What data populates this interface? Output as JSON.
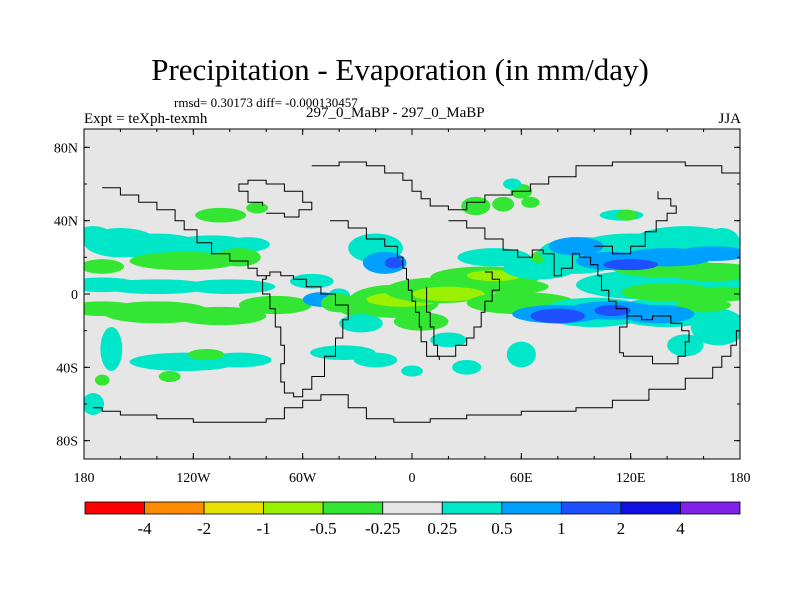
{
  "chart_data": {
    "type": "heatmap",
    "title": "Precipitation - Evaporation (in mm/day)",
    "stats_text": "rmsd= 0.30173 diff= -0.000130457",
    "expt_label": "Expt = teXph-texmh",
    "center_label": "297_0_MaBP - 297_0_MaBP",
    "season": "JJA",
    "xlim": [
      -180,
      180
    ],
    "ylim": [
      -90,
      90
    ],
    "x_ticks": [
      {
        "value": -180,
        "label": "180"
      },
      {
        "value": -120,
        "label": "120W"
      },
      {
        "value": -60,
        "label": "60W"
      },
      {
        "value": 0,
        "label": "0"
      },
      {
        "value": 60,
        "label": "60E"
      },
      {
        "value": 120,
        "label": "120E"
      },
      {
        "value": 180,
        "label": "180"
      }
    ],
    "y_ticks": [
      {
        "value": 80,
        "label": "80N"
      },
      {
        "value": 40,
        "label": "40N"
      },
      {
        "value": 0,
        "label": "0"
      },
      {
        "value": -40,
        "label": "40S"
      },
      {
        "value": -80,
        "label": "80S"
      }
    ],
    "background_color": "#e6e6e6",
    "colorbar": {
      "colors": [
        "#ff0000",
        "#ff8c00",
        "#e8e000",
        "#99f000",
        "#33e633",
        "#e6e6e6",
        "#00e6c8",
        "#00a0ff",
        "#1e50ff",
        "#1010e0",
        "#8020e8"
      ],
      "labels": [
        "-4",
        "-2",
        "-1",
        "-0.5",
        "-0.25",
        "0.25",
        "0.5",
        "1",
        "2",
        "4"
      ]
    },
    "regions": [
      {
        "cat": 6,
        "lon": -175,
        "lat": 32,
        "dlon": 10,
        "dlat": 5
      },
      {
        "cat": 6,
        "lon": -160,
        "lat": 28,
        "dlon": 20,
        "dlat": 8
      },
      {
        "cat": 6,
        "lon": -140,
        "lat": 26,
        "dlon": 25,
        "dlat": 7
      },
      {
        "cat": 6,
        "lon": -110,
        "lat": 25,
        "dlon": 25,
        "dlat": 7
      },
      {
        "cat": 6,
        "lon": -90,
        "lat": 27,
        "dlon": 12,
        "dlat": 4
      },
      {
        "cat": 4,
        "lon": -125,
        "lat": 18,
        "dlon": 30,
        "dlat": 5
      },
      {
        "cat": 4,
        "lon": -95,
        "lat": 20,
        "dlon": 12,
        "dlat": 5
      },
      {
        "cat": 4,
        "lon": -105,
        "lat": 43,
        "dlon": 14,
        "dlat": 4
      },
      {
        "cat": 4,
        "lon": -85,
        "lat": 47,
        "dlon": 6,
        "dlat": 3
      },
      {
        "cat": 4,
        "lon": -170,
        "lat": 15,
        "dlon": 12,
        "dlat": 4
      },
      {
        "cat": 6,
        "lon": -170,
        "lat": 5,
        "dlon": 20,
        "dlat": 4
      },
      {
        "cat": 6,
        "lon": -140,
        "lat": 4,
        "dlon": 30,
        "dlat": 4
      },
      {
        "cat": 6,
        "lon": -100,
        "lat": 4,
        "dlon": 25,
        "dlat": 4
      },
      {
        "cat": 4,
        "lon": -170,
        "lat": -8,
        "dlon": 20,
        "dlat": 4
      },
      {
        "cat": 4,
        "lon": -140,
        "lat": -10,
        "dlon": 30,
        "dlat": 6
      },
      {
        "cat": 4,
        "lon": -105,
        "lat": -12,
        "dlon": 25,
        "dlat": 5
      },
      {
        "cat": 4,
        "lon": -75,
        "lat": -6,
        "dlon": 20,
        "dlat": 5
      },
      {
        "cat": 6,
        "lon": -165,
        "lat": -30,
        "dlon": 6,
        "dlat": 12
      },
      {
        "cat": 6,
        "lon": -125,
        "lat": -37,
        "dlon": 30,
        "dlat": 5
      },
      {
        "cat": 6,
        "lon": -95,
        "lat": -36,
        "dlon": 18,
        "dlat": 4
      },
      {
        "cat": 4,
        "lon": -113,
        "lat": -33,
        "dlon": 10,
        "dlat": 3
      },
      {
        "cat": 4,
        "lon": -133,
        "lat": -45,
        "dlon": 6,
        "dlat": 3
      },
      {
        "cat": 4,
        "lon": -170,
        "lat": -47,
        "dlon": 4,
        "dlat": 3
      },
      {
        "cat": 6,
        "lon": -175,
        "lat": -60,
        "dlon": 6,
        "dlat": 6
      },
      {
        "cat": 6,
        "lon": -55,
        "lat": 7,
        "dlon": 12,
        "dlat": 4
      },
      {
        "cat": 7,
        "lon": -50,
        "lat": -3,
        "dlon": 10,
        "dlat": 4
      },
      {
        "cat": 6,
        "lon": -40,
        "lat": -1,
        "dlon": 6,
        "dlat": 4
      },
      {
        "cat": 4,
        "lon": -40,
        "lat": -5,
        "dlon": 10,
        "dlat": 5
      },
      {
        "cat": 4,
        "lon": -25,
        "lat": -8,
        "dlon": 15,
        "dlat": 5
      },
      {
        "cat": 6,
        "lon": -38,
        "lat": -32,
        "dlon": 18,
        "dlat": 4
      },
      {
        "cat": 6,
        "lon": -20,
        "lat": -36,
        "dlon": 12,
        "dlat": 4
      },
      {
        "cat": 4,
        "lon": -10,
        "lat": -4,
        "dlon": 25,
        "dlat": 9
      },
      {
        "cat": 3,
        "lon": -5,
        "lat": -3,
        "dlon": 20,
        "dlat": 4
      },
      {
        "cat": 4,
        "lon": 15,
        "lat": 2,
        "dlon": 30,
        "dlat": 7
      },
      {
        "cat": 3,
        "lon": 20,
        "lat": 0,
        "dlon": 20,
        "dlat": 4
      },
      {
        "cat": 4,
        "lon": 5,
        "lat": -15,
        "dlon": 15,
        "dlat": 5
      },
      {
        "cat": 6,
        "lon": 20,
        "lat": -25,
        "dlon": 10,
        "dlat": 4
      },
      {
        "cat": 4,
        "lon": 40,
        "lat": 9,
        "dlon": 30,
        "dlat": 6
      },
      {
        "cat": 4,
        "lon": 55,
        "lat": 4,
        "dlon": 20,
        "dlat": 4
      },
      {
        "cat": 3,
        "lon": 45,
        "lat": 10,
        "dlon": 15,
        "dlat": 3
      },
      {
        "cat": 6,
        "lon": 45,
        "lat": 20,
        "dlon": 20,
        "dlat": 5
      },
      {
        "cat": 4,
        "lon": 60,
        "lat": -5,
        "dlon": 30,
        "dlat": 6
      },
      {
        "cat": 6,
        "lon": 70,
        "lat": 14,
        "dlon": 20,
        "dlat": 6
      },
      {
        "cat": 4,
        "lon": 80,
        "lat": 20,
        "dlon": 15,
        "dlat": 5
      },
      {
        "cat": 6,
        "lon": 90,
        "lat": 16,
        "dlon": 20,
        "dlat": 5
      },
      {
        "cat": 6,
        "lon": 60,
        "lat": -33,
        "dlon": 8,
        "dlat": 7
      },
      {
        "cat": 4,
        "lon": 35,
        "lat": 48,
        "dlon": 8,
        "dlat": 5
      },
      {
        "cat": 4,
        "lon": 50,
        "lat": 49,
        "dlon": 6,
        "dlat": 4
      },
      {
        "cat": 4,
        "lon": 60,
        "lat": 56,
        "dlon": 6,
        "dlat": 4
      },
      {
        "cat": 4,
        "lon": 65,
        "lat": 50,
        "dlon": 5,
        "dlat": 3
      },
      {
        "cat": 6,
        "lon": 55,
        "lat": 60,
        "dlon": 5,
        "dlat": 3
      },
      {
        "cat": 6,
        "lon": 115,
        "lat": 43,
        "dlon": 12,
        "dlat": 3
      },
      {
        "cat": 4,
        "lon": 118,
        "lat": 43,
        "dlon": 6,
        "dlat": 3
      },
      {
        "cat": 6,
        "lon": 95,
        "lat": 23,
        "dlon": 25,
        "dlat": 8
      },
      {
        "cat": 6,
        "lon": 120,
        "lat": 25,
        "dlon": 30,
        "dlat": 8
      },
      {
        "cat": 6,
        "lon": 150,
        "lat": 28,
        "dlon": 30,
        "dlat": 9
      },
      {
        "cat": 6,
        "lon": 170,
        "lat": 28,
        "dlon": 10,
        "dlat": 8
      },
      {
        "cat": 6,
        "lon": 130,
        "lat": 5,
        "dlon": 40,
        "dlat": 8
      },
      {
        "cat": 6,
        "lon": 165,
        "lat": 6,
        "dlon": 25,
        "dlat": 6
      },
      {
        "cat": 6,
        "lon": 100,
        "lat": -10,
        "dlon": 30,
        "dlat": 8
      },
      {
        "cat": 6,
        "lon": 140,
        "lat": -10,
        "dlon": 30,
        "dlat": 8
      },
      {
        "cat": 6,
        "lon": 168,
        "lat": -18,
        "dlon": 15,
        "dlat": 10
      },
      {
        "cat": 6,
        "lon": 150,
        "lat": -28,
        "dlon": 10,
        "dlat": 6
      },
      {
        "cat": 4,
        "lon": 140,
        "lat": 14,
        "dlon": 30,
        "dlat": 5
      },
      {
        "cat": 4,
        "lon": 165,
        "lat": 12,
        "dlon": 25,
        "dlat": 5
      },
      {
        "cat": 4,
        "lon": 140,
        "lat": 1,
        "dlon": 25,
        "dlat": 5
      },
      {
        "cat": 4,
        "lon": 170,
        "lat": 0,
        "dlon": 20,
        "dlat": 4
      },
      {
        "cat": 4,
        "lon": 160,
        "lat": -6,
        "dlon": 15,
        "dlat": 4
      },
      {
        "cat": 7,
        "lon": 90,
        "lat": 26,
        "dlon": 15,
        "dlat": 5
      },
      {
        "cat": 7,
        "lon": 110,
        "lat": 18,
        "dlon": 20,
        "dlat": 5
      },
      {
        "cat": 7,
        "lon": 140,
        "lat": 20,
        "dlon": 25,
        "dlat": 5
      },
      {
        "cat": 7,
        "lon": 165,
        "lat": 22,
        "dlon": 20,
        "dlat": 4
      },
      {
        "cat": 7,
        "lon": 80,
        "lat": -11,
        "dlon": 25,
        "dlat": 5
      },
      {
        "cat": 7,
        "lon": 110,
        "lat": -9,
        "dlon": 25,
        "dlat": 5
      },
      {
        "cat": 7,
        "lon": 135,
        "lat": -11,
        "dlon": 20,
        "dlat": 5
      },
      {
        "cat": 8,
        "lon": 120,
        "lat": 16,
        "dlon": 15,
        "dlat": 3
      },
      {
        "cat": 8,
        "lon": 80,
        "lat": -12,
        "dlon": 15,
        "dlat": 4
      },
      {
        "cat": 8,
        "lon": 110,
        "lat": -9,
        "dlon": 10,
        "dlat": 3
      },
      {
        "cat": 6,
        "lon": -20,
        "lat": 25,
        "dlon": 15,
        "dlat": 8
      },
      {
        "cat": 7,
        "lon": -15,
        "lat": 17,
        "dlon": 12,
        "dlat": 6
      },
      {
        "cat": 8,
        "lon": -10,
        "lat": 17,
        "dlon": 5,
        "dlat": 3
      },
      {
        "cat": 6,
        "lon": -28,
        "lat": -16,
        "dlon": 12,
        "dlat": 5
      },
      {
        "cat": 6,
        "lon": 30,
        "lat": -40,
        "dlon": 8,
        "dlat": 4
      },
      {
        "cat": 6,
        "lon": 0,
        "lat": -42,
        "dlon": 6,
        "dlat": 3
      }
    ],
    "coastlines": [
      [
        [
          -175,
          -62
        ],
        [
          -170,
          -64
        ],
        [
          -160,
          -66
        ],
        [
          -140,
          -68
        ],
        [
          -120,
          -70
        ],
        [
          -100,
          -70
        ],
        [
          -80,
          -68
        ],
        [
          -70,
          -62
        ],
        [
          -60,
          -58
        ],
        [
          -50,
          -55
        ],
        [
          -35,
          -62
        ],
        [
          -25,
          -68
        ],
        [
          -10,
          -70
        ],
        [
          10,
          -68
        ],
        [
          30,
          -66
        ],
        [
          60,
          -64
        ],
        [
          90,
          -62
        ],
        [
          110,
          -58
        ],
        [
          130,
          -52
        ],
        [
          150,
          -46
        ],
        [
          165,
          -40
        ],
        [
          170,
          -34
        ],
        [
          175,
          -28
        ],
        [
          178,
          -20
        ],
        [
          180,
          -10
        ]
      ],
      [
        [
          -55,
          70
        ],
        [
          -40,
          72
        ],
        [
          -25,
          70
        ],
        [
          -15,
          66
        ],
        [
          -5,
          62
        ],
        [
          0,
          56
        ],
        [
          5,
          52
        ],
        [
          10,
          48
        ],
        [
          20,
          46
        ],
        [
          30,
          50
        ],
        [
          40,
          54
        ],
        [
          55,
          56
        ],
        [
          65,
          60
        ],
        [
          75,
          64
        ],
        [
          90,
          70
        ],
        [
          110,
          72
        ],
        [
          130,
          72
        ],
        [
          150,
          70
        ],
        [
          170,
          66
        ],
        [
          180,
          64
        ]
      ],
      [
        [
          -45,
          40
        ],
        [
          -35,
          36
        ],
        [
          -25,
          30
        ],
        [
          -15,
          26
        ],
        [
          -8,
          20
        ],
        [
          -5,
          14
        ],
        [
          -3,
          8
        ],
        [
          -2,
          2
        ],
        [
          0,
          -4
        ],
        [
          2,
          -10
        ],
        [
          4,
          -18
        ],
        [
          5,
          -26
        ],
        [
          8,
          -34
        ],
        [
          15,
          -36
        ]
      ],
      [
        [
          -170,
          58
        ],
        [
          -160,
          54
        ],
        [
          -150,
          50
        ],
        [
          -140,
          46
        ],
        [
          -130,
          40
        ],
        [
          -125,
          35
        ],
        [
          -118,
          28
        ],
        [
          -110,
          22
        ],
        [
          -100,
          18
        ],
        [
          -90,
          14
        ],
        [
          -85,
          10
        ],
        [
          -80,
          8
        ]
      ],
      [
        [
          -80,
          8
        ],
        [
          -82,
          0
        ],
        [
          -78,
          -8
        ],
        [
          -75,
          -18
        ],
        [
          -72,
          -28
        ],
        [
          -70,
          -38
        ],
        [
          -72,
          -48
        ],
        [
          -70,
          -54
        ],
        [
          -65,
          -56
        ],
        [
          -60,
          -52
        ],
        [
          -55,
          -45
        ],
        [
          -48,
          -34
        ],
        [
          -42,
          -24
        ],
        [
          -38,
          -14
        ],
        [
          -35,
          -6
        ],
        [
          -42,
          0
        ],
        [
          -50,
          4
        ],
        [
          -58,
          8
        ],
        [
          -65,
          10
        ],
        [
          -72,
          12
        ],
        [
          -78,
          10
        ],
        [
          -80,
          8
        ]
      ],
      [
        [
          20,
          40
        ],
        [
          30,
          36
        ],
        [
          40,
          30
        ],
        [
          50,
          24
        ],
        [
          58,
          20
        ],
        [
          66,
          24
        ],
        [
          72,
          22
        ],
        [
          78,
          10
        ],
        [
          82,
          14
        ],
        [
          88,
          22
        ],
        [
          92,
          20
        ],
        [
          98,
          16
        ],
        [
          102,
          10
        ],
        [
          104,
          2
        ],
        [
          108,
          -4
        ],
        [
          112,
          -8
        ]
      ],
      [
        [
          112,
          -8
        ],
        [
          118,
          -12
        ],
        [
          126,
          -14
        ],
        [
          132,
          -12
        ],
        [
          138,
          -12
        ],
        [
          142,
          -16
        ],
        [
          148,
          -20
        ],
        [
          152,
          -26
        ],
        [
          150,
          -34
        ],
        [
          146,
          -38
        ],
        [
          140,
          -38
        ],
        [
          132,
          -34
        ],
        [
          122,
          -34
        ],
        [
          116,
          -32
        ],
        [
          114,
          -26
        ],
        [
          114,
          -18
        ],
        [
          118,
          -12
        ]
      ],
      [
        [
          40,
          12
        ],
        [
          44,
          8
        ],
        [
          48,
          2
        ],
        [
          44,
          -4
        ],
        [
          40,
          -10
        ],
        [
          38,
          -18
        ],
        [
          34,
          -24
        ],
        [
          30,
          -28
        ],
        [
          24,
          -34
        ],
        [
          18,
          -34
        ],
        [
          14,
          -28
        ],
        [
          12,
          -18
        ],
        [
          10,
          -10
        ],
        [
          8,
          -2
        ],
        [
          8,
          4
        ]
      ],
      [
        [
          100,
          26
        ],
        [
          110,
          22
        ],
        [
          120,
          26
        ],
        [
          128,
          34
        ],
        [
          134,
          40
        ],
        [
          140,
          44
        ],
        [
          145,
          48
        ],
        [
          142,
          52
        ],
        [
          135,
          56
        ]
      ],
      [
        [
          -80,
          44
        ],
        [
          -70,
          42
        ],
        [
          -62,
          46
        ],
        [
          -55,
          50
        ],
        [
          -60,
          56
        ],
        [
          -70,
          60
        ],
        [
          -80,
          62
        ],
        [
          -90,
          60
        ],
        [
          -95,
          56
        ],
        [
          -90,
          50
        ],
        [
          -82,
          48
        ]
      ]
    ]
  }
}
